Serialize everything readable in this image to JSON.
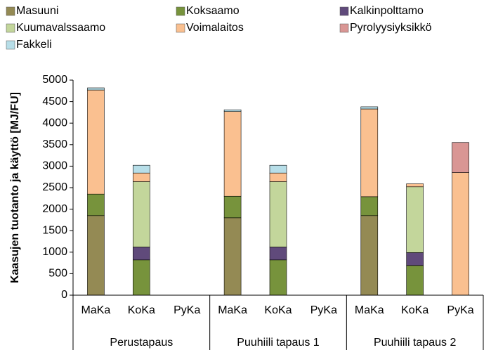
{
  "chart_data": {
    "type": "stacked_bar",
    "y_label": "Kaasujen tuotanto ja käyttö  [MJ/FU]",
    "categories": [
      "MaKa",
      "KoKa",
      "PyKa",
      "MaKa",
      "KoKa",
      "PyKa",
      "MaKa",
      "KoKa",
      "PyKa"
    ],
    "groups": [
      "Perustapaus",
      "Puuhiili tapaus 1",
      "Puuhiili tapaus 2"
    ],
    "series": [
      {
        "name": "Masuuni",
        "color": "#948a54",
        "values": [
          1850,
          null,
          null,
          1800,
          null,
          null,
          1850,
          null,
          null
        ]
      },
      {
        "name": "Koksaamo",
        "color": "#77933c",
        "values": [
          500,
          820,
          null,
          500,
          820,
          null,
          440,
          690,
          null
        ]
      },
      {
        "name": "Kalkinpolttamo",
        "color": "#604a7b",
        "values": [
          null,
          300,
          null,
          null,
          300,
          null,
          null,
          300,
          null
        ]
      },
      {
        "name": "Kuumavalssaamo",
        "color": "#c3d69b",
        "values": [
          null,
          1520,
          null,
          null,
          1520,
          null,
          null,
          1530,
          null
        ]
      },
      {
        "name": "Voimalaitos",
        "color": "#fac090",
        "values": [
          2420,
          200,
          null,
          1970,
          200,
          null,
          2040,
          70,
          2850
        ]
      },
      {
        "name": "Pyrolyysiyksikkö",
        "color": "#d99694",
        "values": [
          null,
          null,
          null,
          null,
          null,
          null,
          null,
          null,
          700
        ]
      },
      {
        "name": "Fakkeli",
        "color": "#b7dee8",
        "values": [
          50,
          180,
          null,
          40,
          180,
          null,
          50,
          null,
          null
        ]
      }
    ],
    "ylim": [
      0,
      5000
    ],
    "yticks": [
      0,
      500,
      1000,
      1500,
      2000,
      2500,
      3000,
      3500,
      4000,
      4500,
      5000
    ],
    "grid": false,
    "legend": "top"
  }
}
